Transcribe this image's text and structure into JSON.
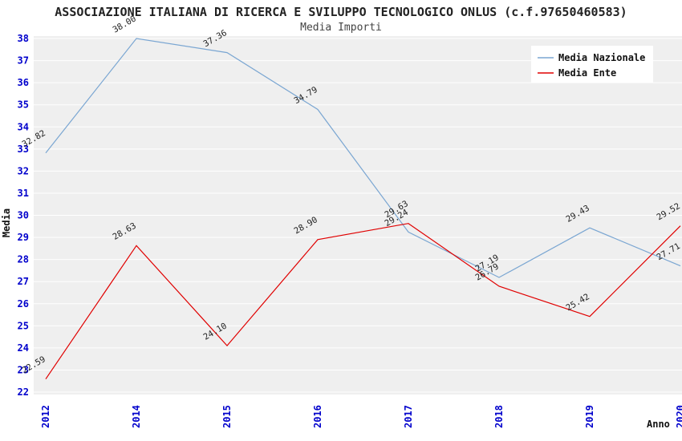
{
  "header": {
    "title": "ASSOCIAZIONE ITALIANA DI RICERCA E SVILUPPO TECNOLOGICO ONLUS (c.f.97650460583)",
    "subtitle": "Media Importi"
  },
  "chart_data": {
    "type": "line",
    "categories": [
      "2012",
      "2014",
      "2015",
      "2016",
      "2017",
      "2018",
      "2019",
      "2020"
    ],
    "series": [
      {
        "name": "Media Nazionale",
        "color": "#7aa6d2",
        "values": [
          32.82,
          38.0,
          37.36,
          34.79,
          29.24,
          27.19,
          29.43,
          27.71
        ]
      },
      {
        "name": "Media Ente",
        "color": "#e00000",
        "values": [
          22.59,
          28.63,
          24.1,
          28.9,
          29.63,
          26.79,
          25.42,
          29.52
        ]
      }
    ],
    "title": "ASSOCIAZIONE ITALIANA DI RICERCA E SVILUPPO TECNOLOGICO ONLUS (c.f.97650460583)",
    "subtitle": "Media Importi",
    "xlabel": "Anno",
    "ylabel": "Media",
    "ylim": [
      22,
      38
    ],
    "ytick_step": 1,
    "grid": true,
    "legend_position": "top-right",
    "colors": {
      "plot_background": "#efefef",
      "grid_line": "#ffffff",
      "tick_label": "#0000cc",
      "axis_label": "#111111",
      "point_label": "#222222",
      "legend_background": "#ffffff"
    }
  }
}
